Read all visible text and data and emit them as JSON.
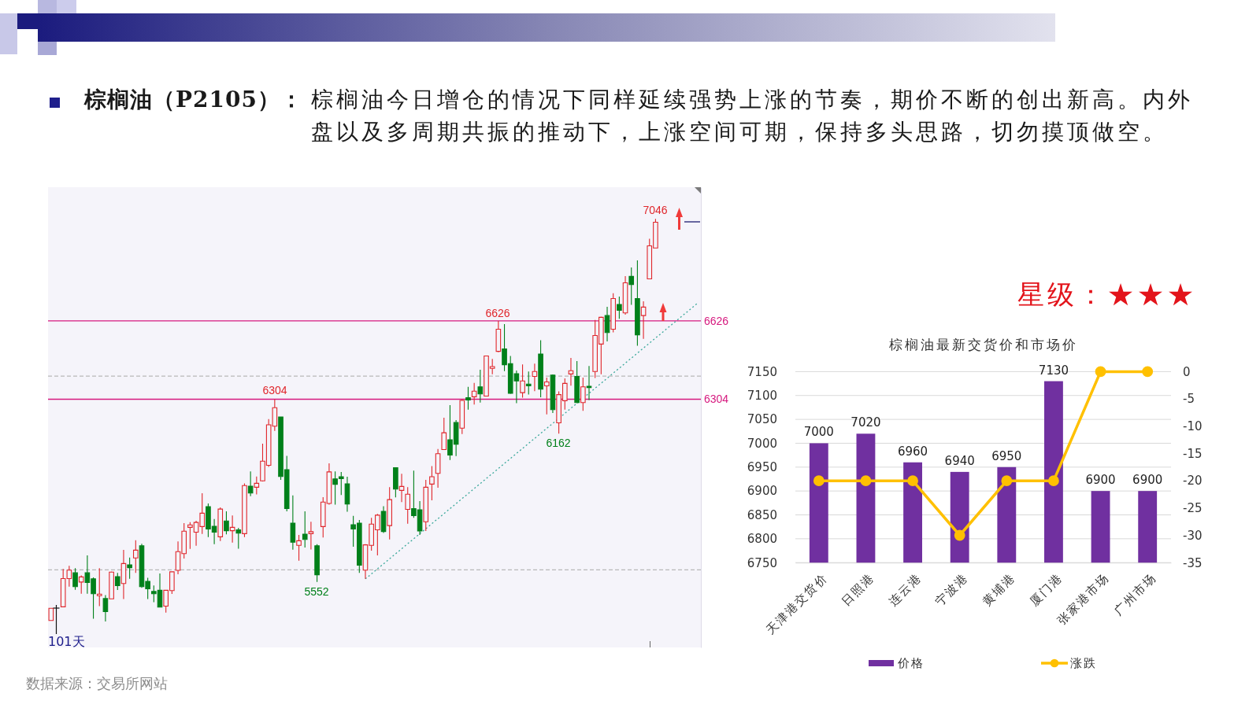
{
  "chart_data": [
    {
      "type": "candlestick",
      "title": "棕榈油（P2105）：",
      "subtitle": "棕榈油今日增仓的情况下同样延续强势上涨的节奏，期价不断的创出新高。内外盘以及多周期共振的推动下，上涨空间可期，保持多头思路，切勿摸顶做空。",
      "categories": [
        null,
        null,
        null,
        null,
        null,
        null,
        null,
        null,
        null,
        null,
        null,
        null,
        null,
        null,
        null,
        null,
        null,
        null,
        null,
        null,
        null,
        null,
        null,
        null,
        null,
        null,
        null,
        null,
        null,
        null,
        null,
        null,
        null,
        null,
        null,
        null,
        null,
        null,
        null,
        null,
        null,
        null,
        null,
        null,
        null,
        null,
        null,
        null,
        null,
        null,
        null,
        null,
        null,
        null,
        null,
        null,
        null,
        null,
        null,
        null,
        null,
        null,
        null,
        null,
        null,
        null,
        null,
        null,
        null,
        null,
        null,
        null,
        null,
        null,
        null,
        null,
        null,
        null,
        null,
        null,
        null,
        null,
        null,
        null,
        null,
        null,
        null,
        null,
        null,
        null,
        null,
        null,
        null,
        null,
        null,
        null,
        null,
        null,
        null,
        null,
        null,
        null,
        null,
        null,
        null,
        null,
        null,
        null
      ],
      "ylim": [
        5283,
        7176
      ],
      "yticks": [
        6304,
        6626
      ],
      "grid": "y",
      "ohlc": [
        [
          5394,
          5444,
          5392,
          5444
        ],
        null,
        [
          5450,
          5606,
          5448,
          5566
        ],
        [
          5566,
          5619,
          5533,
          5601
        ],
        [
          5590,
          5609,
          5520,
          5533
        ],
        [
          5552,
          5579,
          5504,
          5573
        ],
        [
          5590,
          5662,
          5504,
          5550
        ],
        [
          5565,
          5571,
          5401,
          5504
        ],
        [
          5496,
          5609,
          5453,
          5502
        ],
        [
          5484,
          5498,
          5390,
          5430
        ],
        [
          5483,
          5595,
          5482,
          5593
        ],
        [
          5574,
          5590,
          5519,
          5537
        ],
        [
          5546,
          5684,
          5482,
          5628
        ],
        [
          5623,
          5653,
          5565,
          5611
        ],
        [
          5651,
          5724,
          5590,
          5683
        ],
        [
          5701,
          5709,
          5528,
          5533
        ],
        [
          5555,
          5569,
          5482,
          5524
        ],
        [
          5513,
          5538,
          5469,
          5504
        ],
        [
          5518,
          5587,
          5448,
          5449
        ],
        [
          5453,
          5518,
          5426,
          5518
        ],
        [
          5517,
          5595,
          5503,
          5594
        ],
        [
          5600,
          5719,
          5584,
          5677
        ],
        [
          5669,
          5794,
          5649,
          5761
        ],
        [
          5777,
          5798,
          5688,
          5787
        ],
        [
          5757,
          5804,
          5701,
          5797
        ],
        [
          5780,
          5917,
          5750,
          5835
        ],
        [
          5862,
          5875,
          5737,
          5770
        ],
        [
          5781,
          5811,
          5708,
          5757
        ],
        [
          5738,
          5859,
          5721,
          5852
        ],
        [
          5803,
          5843,
          5748,
          5763
        ],
        [
          5763,
          5826,
          5714,
          5777
        ],
        [
          5767,
          5775,
          5689,
          5753
        ],
        [
          5751,
          5958,
          5737,
          5949
        ],
        [
          5946,
          6007,
          5905,
          5918
        ],
        [
          5942,
          5986,
          5912,
          5958
        ],
        [
          5968,
          6121,
          5966,
          6049
        ],
        [
          6032,
          6222,
          6026,
          6199
        ],
        [
          6193,
          6304,
          6174,
          6269
        ],
        [
          6231,
          6231,
          5972,
          5986
        ],
        [
          6014,
          6071,
          5843,
          5854
        ],
        [
          5794,
          5908,
          5685,
          5716
        ],
        [
          5703,
          5746,
          5640,
          5722
        ],
        [
          5749,
          5843,
          5694,
          5727
        ],
        [
          5751,
          5800,
          5686,
          5759
        ],
        [
          5701,
          5708,
          5552,
          5582
        ],
        [
          5780,
          5901,
          5735,
          5881
        ],
        [
          5875,
          6040,
          5870,
          6005
        ],
        [
          5976,
          6007,
          5870,
          5954
        ],
        [
          5985,
          6005,
          5910,
          5977
        ],
        [
          5956,
          5985,
          5841,
          5873
        ],
        [
          5788,
          5824,
          5697,
          5770
        ],
        [
          5794,
          5807,
          5590,
          5621
        ],
        [
          5601,
          5708,
          5565,
          5705
        ],
        [
          5703,
          5816,
          5681,
          5790
        ],
        [
          5767,
          5832,
          5662,
          5827
        ],
        [
          5843,
          5864,
          5754,
          5760
        ],
        [
          5784,
          5942,
          5727,
          5891
        ],
        [
          6022,
          6022,
          5900,
          5934
        ],
        [
          5929,
          5997,
          5881,
          5945
        ],
        [
          5851,
          5942,
          5792,
          5913
        ],
        [
          5854,
          6010,
          5816,
          5825
        ],
        [
          5849,
          5885,
          5746,
          5762
        ],
        [
          5800,
          5972,
          5762,
          5942
        ],
        [
          5955,
          6029,
          5888,
          5985
        ],
        [
          5999,
          6099,
          5940,
          6080
        ],
        [
          6097,
          6228,
          6096,
          6166
        ],
        [
          6137,
          6280,
          6054,
          6074
        ],
        [
          6208,
          6218,
          6070,
          6119
        ],
        [
          6185,
          6303,
          6161,
          6299
        ],
        [
          6310,
          6355,
          6261,
          6301
        ],
        [
          6314,
          6371,
          6282,
          6337
        ],
        [
          6355,
          6425,
          6290,
          6326
        ],
        [
          6317,
          6482,
          6316,
          6482
        ],
        [
          6431,
          6470,
          6407,
          6438
        ],
        [
          6501,
          6626,
          6497,
          6592
        ],
        [
          6511,
          6613,
          6420,
          6446
        ],
        [
          6450,
          6482,
          6326,
          6328
        ],
        [
          6409,
          6422,
          6288,
          6379
        ],
        [
          6331,
          6447,
          6310,
          6379
        ],
        [
          6366,
          6418,
          6323,
          6359
        ],
        [
          6398,
          6450,
          6337,
          6418
        ],
        [
          6490,
          6547,
          6312,
          6345
        ],
        [
          6359,
          6393,
          6242,
          6375
        ],
        [
          6403,
          6406,
          6247,
          6261
        ],
        [
          6207,
          6336,
          6162,
          6323
        ],
        [
          6298,
          6390,
          6261,
          6369
        ],
        [
          6408,
          6474,
          6360,
          6421
        ],
        [
          6398,
          6461,
          6288,
          6290
        ],
        [
          6290,
          6393,
          6256,
          6355
        ],
        [
          6357,
          6441,
          6301,
          6352
        ],
        [
          6418,
          6630,
          6391,
          6566
        ],
        [
          6531,
          6644,
          6407,
          6641
        ],
        [
          6648,
          6684,
          6542,
          6578
        ],
        [
          6592,
          6740,
          6579,
          6718
        ],
        [
          6694,
          6726,
          6635,
          6670
        ],
        [
          6659,
          6810,
          6652,
          6783
        ],
        [
          6809,
          6846,
          6692,
          6776
        ],
        [
          6718,
          6875,
          6524,
          6569
        ],
        [
          6648,
          6707,
          6552,
          6683
        ],
        [
          6799,
          6964,
          6799,
          6935
        ],
        [
          6926,
          7046,
          6926,
          7032
        ],
        null,
        null,
        null,
        null,
        null,
        null,
        null
      ],
      "colors": [
        "#e0262b",
        null,
        "#e0262b",
        "#e0262b",
        "#00801a",
        "#e0262b",
        "#00801a",
        "#00801a",
        "#e0262b",
        "#00801a",
        "#e0262b",
        "#00801a",
        "#e0262b",
        "#00801a",
        "#e0262b",
        "#00801a",
        "#00801a",
        "#00801a",
        "#00801a",
        "#e0262b",
        "#e0262b",
        "#e0262b",
        "#e0262b",
        "#e0262b",
        "#e0262b",
        "#e0262b",
        "#00801a",
        "#00801a",
        "#e0262b",
        "#00801a",
        "#e0262b",
        "#00801a",
        "#e0262b",
        "#00801a",
        "#e0262b",
        "#e0262b",
        "#e0262b",
        "#e0262b",
        "#00801a",
        "#00801a",
        "#00801a",
        "#e0262b",
        "#00801a",
        "#e0262b",
        "#00801a",
        "#e0262b",
        "#e0262b",
        "#00801a",
        "#00801a",
        "#00801a",
        "#00801a",
        "#00801a",
        "#e0262b",
        "#e0262b",
        "#e0262b",
        "#00801a",
        "#e0262b",
        "#00801a",
        "#e0262b",
        "#e0262b",
        "#00801a",
        "#00801a",
        "#e0262b",
        "#e0262b",
        "#e0262b",
        "#e0262b",
        "#00801a",
        "#00801a",
        "#e0262b",
        "#00801a",
        "#e0262b",
        "#00801a",
        "#e0262b",
        "#e0262b",
        "#e0262b",
        "#00801a",
        "#00801a",
        "#00801a",
        "#e0262b",
        "#00801a",
        "#e0262b",
        "#00801a",
        "#e0262b",
        "#00801a",
        "#e0262b",
        "#e0262b",
        "#e0262b",
        "#00801a",
        "#e0262b",
        "#00801a",
        "#e0262b",
        "#e0262b",
        "#00801a",
        "#e0262b",
        "#00801a",
        "#e0262b",
        "#00801a",
        "#00801a",
        "#e0262b",
        "#e0262b",
        "#e0262b",
        null,
        null,
        null,
        null,
        null,
        null,
        null
      ],
      "series": [
        {
          "type": "line",
          "color": "#3aa89a",
          "line_style": "dotted",
          "values": [
            null,
            null,
            null,
            null,
            null,
            null,
            null,
            null,
            null,
            null,
            null,
            null,
            null,
            null,
            null,
            null,
            null,
            null,
            null,
            null,
            null,
            null,
            null,
            null,
            null,
            null,
            null,
            null,
            null,
            null,
            null,
            null,
            null,
            null,
            null,
            null,
            null,
            null,
            null,
            null,
            null,
            null,
            null,
            null,
            null,
            null,
            null,
            null,
            null,
            null,
            null,
            null,
            5565,
            null,
            null,
            null,
            null,
            null,
            null,
            null,
            null,
            null,
            null,
            null,
            null,
            null,
            null,
            null,
            null,
            null,
            null,
            null,
            null,
            null,
            null,
            null,
            null,
            null,
            null,
            null,
            null,
            null,
            null,
            null,
            null,
            null,
            null,
            null,
            null,
            null,
            null,
            null,
            null,
            null,
            null,
            null,
            null,
            null,
            null,
            null,
            null,
            null,
            null,
            null,
            null,
            null,
            null,
            6700
          ]
        }
      ],
      "ref_lines": [
        {
          "axis": "y",
          "value": 6399,
          "color": "#b8b8b8",
          "line_style": "dashed"
        },
        {
          "axis": "y",
          "value": 5602,
          "color": "#b8b8b8",
          "line_style": "dashed"
        }
      ],
      "annotations": [
        "7046",
        "6626",
        "6304",
        "5552",
        "6162",
        "101天",
        "数据来源：交易所网站"
      ]
    },
    {
      "type": "bar",
      "title": "棕榈油最新交货价和市场价",
      "categories": [
        "天津港交货价",
        "日照港",
        "连云港",
        "宁波港",
        "黄埔港",
        "厦门港",
        "张家港市场",
        "广州市场"
      ],
      "series": [
        {
          "name": "价格",
          "type": "bar",
          "color": "#7030a0",
          "values": [
            7000,
            7020,
            6960,
            6940,
            6950,
            7130,
            6900,
            6900
          ],
          "value_labels": [
            "7000",
            "7020",
            "6960",
            "6940",
            "6950",
            "7130",
            "6900",
            "6900"
          ]
        },
        {
          "name": "涨跌",
          "type": "line",
          "axis": "y2",
          "color": "#ffc000",
          "values": [
            -20,
            -20,
            -20,
            -30,
            -20,
            -20,
            0,
            0
          ]
        }
      ],
      "ylim": [
        6750,
        7150
      ],
      "yticks": [
        6750,
        6800,
        6850,
        6900,
        6950,
        7000,
        7050,
        7100,
        7150
      ],
      "y2lim": [
        -35,
        0
      ],
      "y2ticks": [
        -35,
        -30,
        -25,
        -20,
        -15,
        -10,
        -5,
        0
      ],
      "grid": "y",
      "legend": "bottom",
      "marker": "circle",
      "annotations": [
        "星级：★★★"
      ]
    }
  ]
}
